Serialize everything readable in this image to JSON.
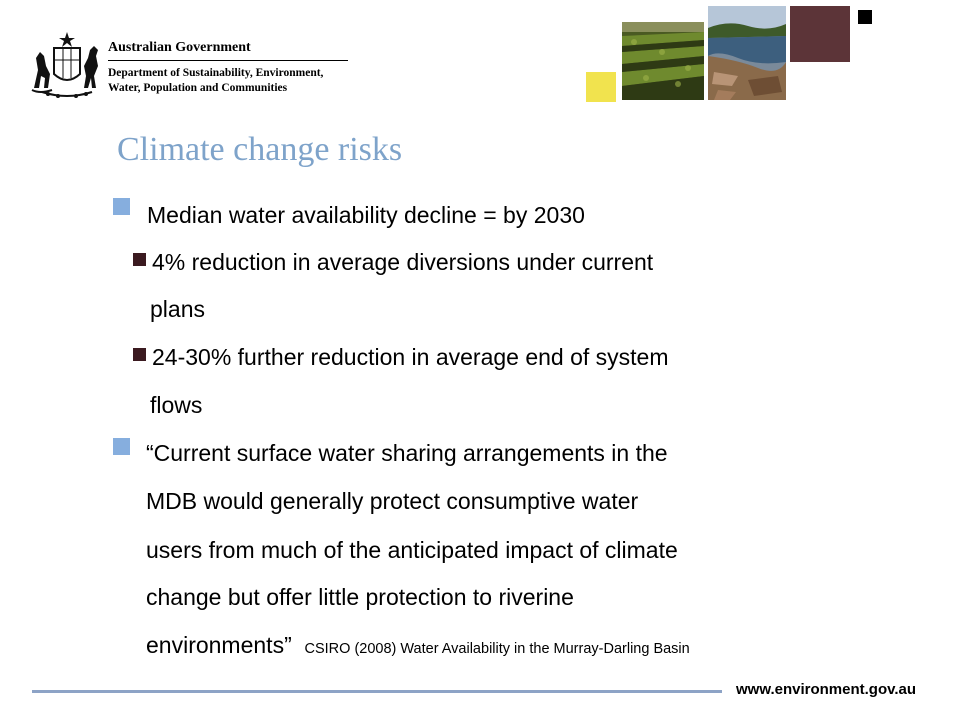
{
  "header": {
    "gov_title": "Australian Government",
    "department_line1": "Department of Sustainability, Environment,",
    "department_line2": "Water, Population and Communities"
  },
  "title": "Climate change risks",
  "bullets": [
    {
      "level": 1,
      "lines": [
        "Median water availability decline = by 2030"
      ]
    },
    {
      "level": 2,
      "lines": [
        "4% reduction in average diversions under current",
        "plans"
      ]
    },
    {
      "level": 2,
      "lines": [
        "24-30% further reduction in average end of system",
        "flows"
      ]
    },
    {
      "level": 1,
      "lines": [
        "“Current surface water sharing arrangements in the",
        "MDB would generally protect consumptive water",
        "users from much of the anticipated impact of climate",
        "change but offer little protection to riverine",
        "environments”"
      ],
      "citation": "CSIRO (2008) Water Availability in the Murray-Darling Basin"
    }
  ],
  "footer": {
    "url": "www.environment.gov.au"
  },
  "colors": {
    "title": "#7ea3ca",
    "bullet_level1": "#86aede",
    "bullet_level2": "#3b1a20",
    "footer_rule": "#8da3c6",
    "accent_yellow": "#f1e34e",
    "accent_maroon": "#5c3438"
  },
  "icons": {
    "crest": "commonwealth-coat-of-arms-icon",
    "photo1": "crop-field-photo",
    "photo2": "river-photo"
  }
}
